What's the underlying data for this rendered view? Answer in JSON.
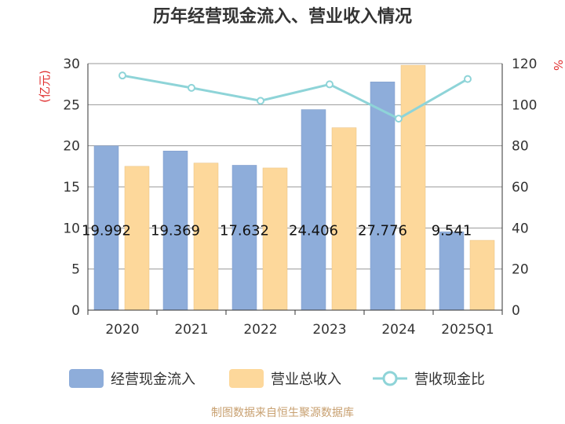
{
  "chart_data": {
    "type": "bar",
    "title": "历年经营现金流入、营业收入情况",
    "categories": [
      "2020",
      "2021",
      "2022",
      "2023",
      "2024",
      "2025Q1"
    ],
    "y_left_unit": "(亿元)",
    "y_right_unit": "%",
    "y_left_ticks": [
      "0",
      "5",
      "10",
      "15",
      "20",
      "25",
      "30"
    ],
    "y_right_ticks": [
      "0",
      "20",
      "40",
      "60",
      "80",
      "100",
      "120"
    ],
    "ylim_left": [
      0,
      30
    ],
    "ylim_right": [
      0,
      120
    ],
    "grid": true,
    "legend_position": "bottom",
    "series": [
      {
        "name": "经营现金流入",
        "type": "bar",
        "axis": "left",
        "color": "#8eadda",
        "values": [
          19.992,
          19.369,
          17.632,
          24.406,
          27.776,
          9.541
        ],
        "labels": [
          "19.992",
          "19.369",
          "17.632",
          "24.406",
          "27.776",
          "9.541"
        ]
      },
      {
        "name": "营业总收入",
        "type": "bar",
        "axis": "right_scale_left",
        "color": "#fdd89b",
        "values": [
          17.5,
          17.9,
          17.3,
          22.2,
          29.8,
          8.5
        ]
      },
      {
        "name": "营收现金比",
        "type": "line",
        "axis": "right",
        "color": "#8ed4d8",
        "values": [
          114.2,
          108.2,
          101.9,
          109.9,
          93.2,
          112.5
        ]
      }
    ]
  },
  "source": "制图数据来自恒生聚源数据库"
}
